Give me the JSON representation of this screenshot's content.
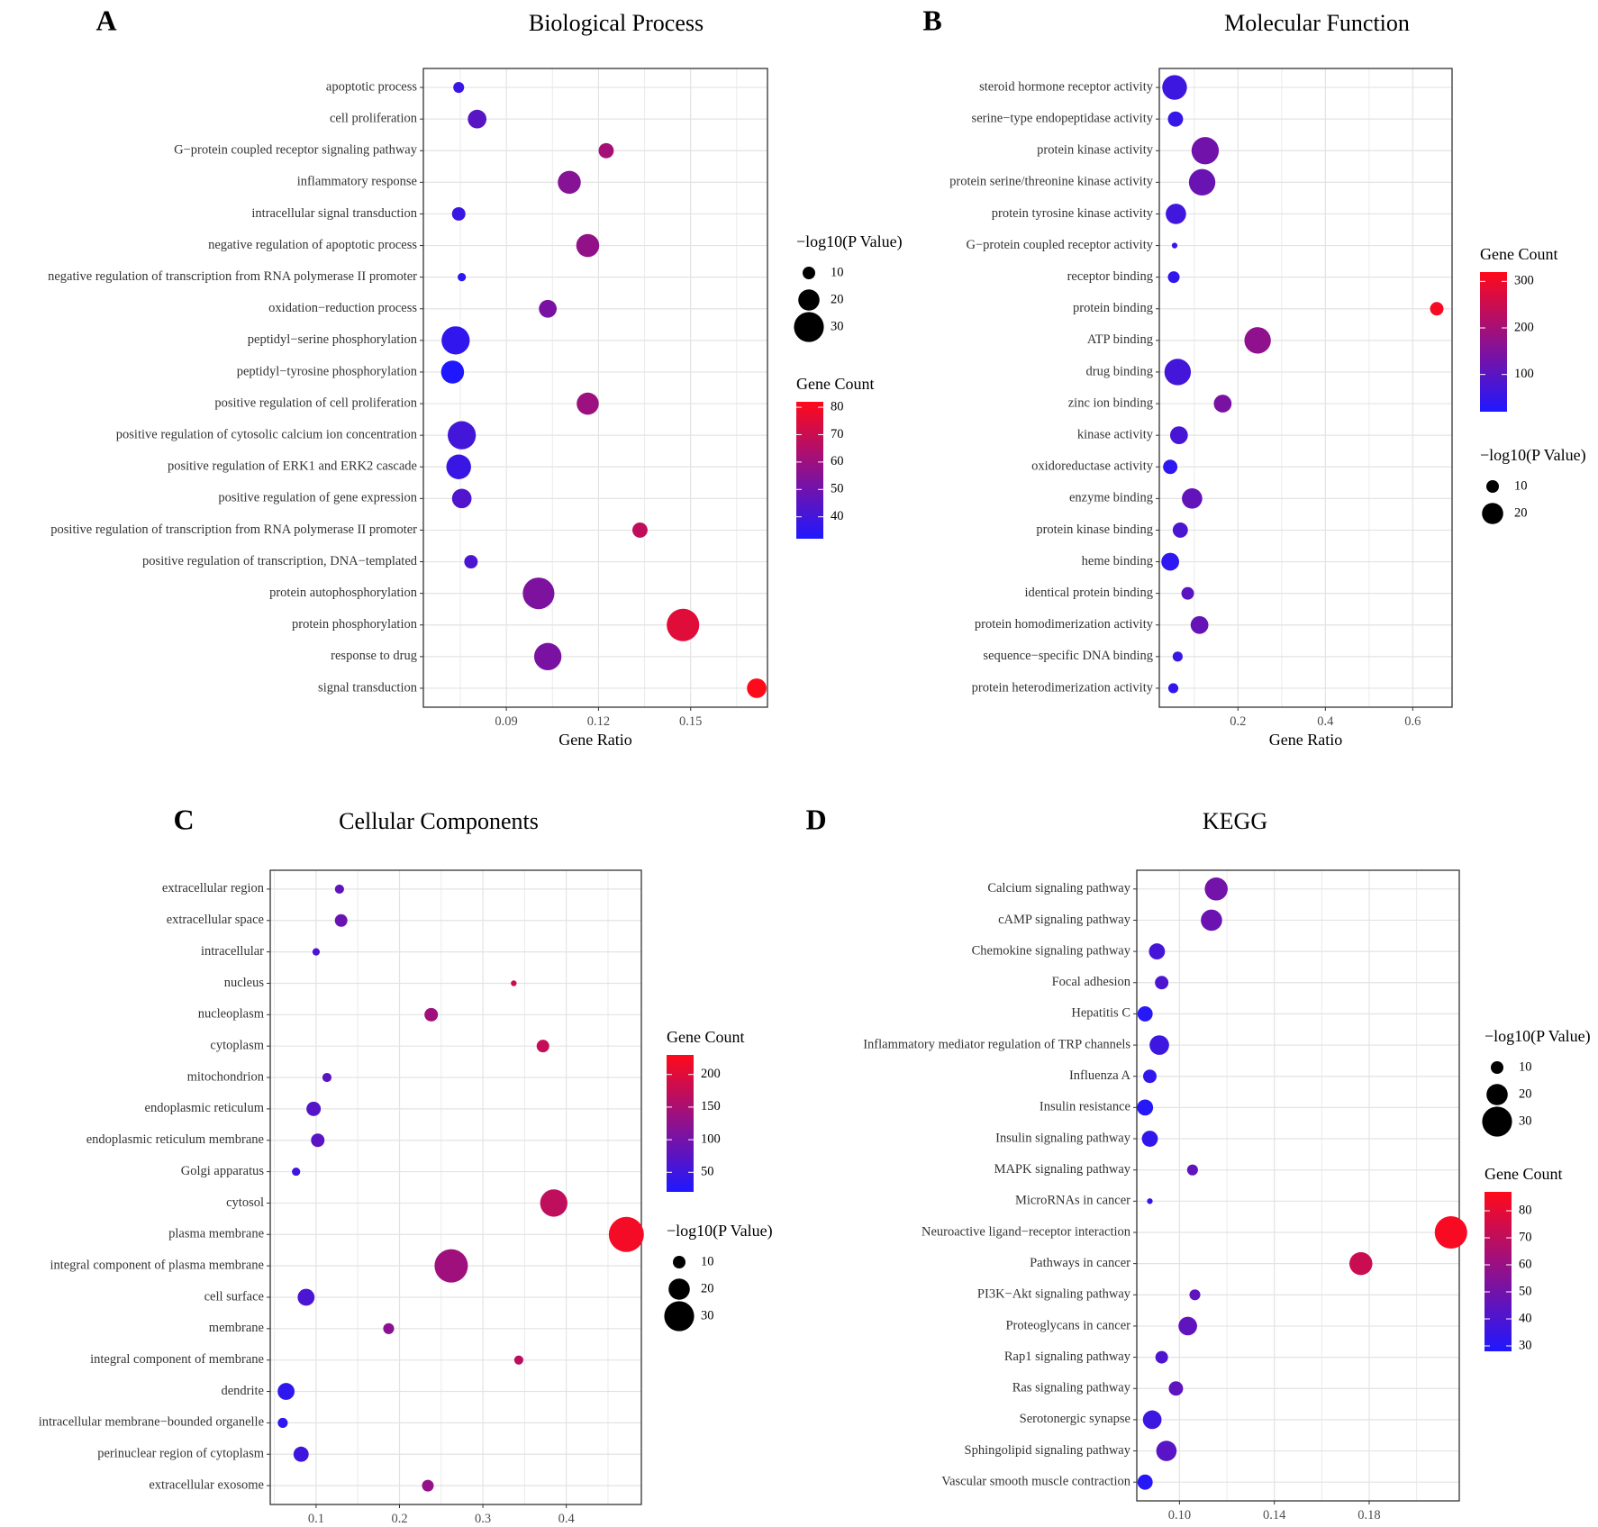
{
  "chart_data": [
    {
      "type": "scatter",
      "letter": "A",
      "title": "Biological Process",
      "xlabel": "Gene Ratio",
      "ylabel": "",
      "xlim": [
        0.063,
        0.175
      ],
      "xticks": [
        0.09,
        0.12,
        0.15
      ],
      "xtick_labels": [
        "0.09",
        "0.12",
        "0.15"
      ],
      "grid": true,
      "size_legend": {
        "title": "−log10(P Value)",
        "values": [
          10,
          20,
          30
        ],
        "labels": [
          "10",
          "20",
          "30"
        ]
      },
      "color_legend": {
        "title": "Gene Count",
        "range": [
          32,
          82
        ],
        "ticks": [
          40,
          50,
          60,
          70,
          80
        ],
        "tick_labels": [
          "40",
          "50",
          "60",
          "70",
          "80"
        ],
        "low_color": "#1f18ff",
        "high_color": "#ff0a1a"
      },
      "legend_order": [
        "size",
        "color"
      ],
      "categories": [
        "apoptotic process",
        "cell proliferation",
        "G−protein coupled receptor signaling pathway",
        "inflammatory response",
        "intracellular signal transduction",
        "negative regulation of apoptotic process",
        "negative regulation of transcription from RNA polymerase II promoter",
        "oxidation−reduction process",
        "peptidyl−serine phosphorylation",
        "peptidyl−tyrosine phosphorylation",
        "positive regulation of cell proliferation",
        "positive regulation of cytosolic calcium ion concentration",
        "positive regulation of ERK1 and ERK2 cascade",
        "positive regulation of gene expression",
        "positive regulation of transcription from RNA polymerase II promoter",
        "positive regulation of transcription, DNA−templated",
        "protein autophosphorylation",
        "protein phosphorylation",
        "response to drug",
        "signal transduction"
      ],
      "x": [
        0.0745,
        0.0805,
        0.1225,
        0.1105,
        0.0745,
        0.1165,
        0.0755,
        0.1035,
        0.0735,
        0.0725,
        0.1165,
        0.0755,
        0.0745,
        0.0755,
        0.1335,
        0.0785,
        0.1005,
        0.1475,
        0.1035,
        0.1715
      ],
      "neg_log10_p": [
        8,
        17,
        13,
        22,
        11,
        22,
        5,
        16,
        28,
        22,
        21,
        28,
        24,
        18,
        13,
        11,
        32,
        33,
        27,
        18
      ],
      "gene_count": [
        38,
        45,
        62,
        55,
        38,
        58,
        35,
        52,
        36,
        32,
        60,
        40,
        38,
        43,
        68,
        42,
        53,
        75,
        52,
        82
      ]
    },
    {
      "type": "scatter",
      "letter": "B",
      "title": "Molecular Function",
      "xlabel": "Gene Ratio",
      "ylabel": "",
      "xlim": [
        0.02,
        0.69
      ],
      "xticks": [
        0.2,
        0.4,
        0.6
      ],
      "xtick_labels": [
        "0.2",
        "0.4",
        "0.6"
      ],
      "grid": true,
      "size_legend": {
        "title": "−log10(P Value)",
        "values": [
          10,
          20
        ],
        "labels": [
          "10",
          "20"
        ]
      },
      "color_legend": {
        "title": "Gene Count",
        "range": [
          20,
          320
        ],
        "ticks": [
          100,
          200,
          300
        ],
        "tick_labels": [
          "100",
          "200",
          "300"
        ],
        "low_color": "#1f18ff",
        "high_color": "#ff0a1a"
      },
      "legend_order": [
        "color",
        "size"
      ],
      "categories": [
        "steroid hormone receptor activity",
        "serine−type endopeptidase activity",
        "protein kinase activity",
        "protein serine/threonine kinase activity",
        "protein tyrosine kinase activity",
        "G−protein coupled receptor activity",
        "receptor binding",
        "protein binding",
        "ATP binding",
        "drug binding",
        "zinc ion binding",
        "kinase activity",
        "oxidoreductase activity",
        "enzyme binding",
        "protein kinase binding",
        "heme binding",
        "identical protein binding",
        "protein homodimerization activity",
        "sequence−specific DNA binding",
        "protein heterodimerization activity"
      ],
      "x": [
        0.055,
        0.057,
        0.125,
        0.118,
        0.058,
        0.055,
        0.053,
        0.655,
        0.245,
        0.062,
        0.165,
        0.065,
        0.045,
        0.095,
        0.068,
        0.045,
        0.085,
        0.112,
        0.062,
        0.052
      ],
      "neg_log10_p": [
        24,
        13,
        27,
        26,
        19,
        2,
        9,
        11,
        26,
        26,
        16,
        16,
        12,
        19,
        13,
        16,
        10,
        16,
        7,
        7
      ],
      "gene_count": [
        60,
        50,
        130,
        120,
        65,
        50,
        45,
        310,
        170,
        70,
        140,
        75,
        40,
        110,
        80,
        40,
        100,
        115,
        55,
        45
      ]
    },
    {
      "type": "scatter",
      "letter": "C",
      "title": "Cellular Components",
      "xlabel": "Gene Ratio",
      "ylabel": "",
      "xlim": [
        0.045,
        0.49
      ],
      "xticks": [
        0.1,
        0.2,
        0.3,
        0.4
      ],
      "xtick_labels": [
        "0.1",
        "0.2",
        "0.3",
        "0.4"
      ],
      "grid": true,
      "size_legend": {
        "title": "−log10(P Value)",
        "values": [
          10,
          20,
          30
        ],
        "labels": [
          "10",
          "20",
          "30"
        ]
      },
      "color_legend": {
        "title": "Gene Count",
        "range": [
          20,
          230
        ],
        "ticks": [
          50,
          100,
          150,
          200
        ],
        "tick_labels": [
          "50",
          "100",
          "150",
          "200"
        ],
        "low_color": "#1f18ff",
        "high_color": "#ff0a1a"
      },
      "legend_order": [
        "color",
        "size"
      ],
      "categories": [
        "extracellular region",
        "extracellular space",
        "intracellular",
        "nucleus",
        "nucleoplasm",
        "cytoplasm",
        "mitochondrion",
        "endoplasmic reticulum",
        "endoplasmic reticulum membrane",
        "Golgi apparatus",
        "cytosol",
        "plasma membrane",
        "integral component of plasma membrane",
        "cell surface",
        "membrane",
        "integral component of membrane",
        "dendrite",
        "intracellular membrane−bounded organelle",
        "perinuclear region of cytoplasm",
        "extracellular exosome"
      ],
      "x": [
        0.128,
        0.13,
        0.1,
        0.337,
        0.238,
        0.372,
        0.113,
        0.097,
        0.102,
        0.076,
        0.385,
        0.472,
        0.262,
        0.088,
        0.187,
        0.343,
        0.064,
        0.06,
        0.082,
        0.234
      ],
      "neg_log10_p": [
        6,
        10,
        4,
        2,
        11,
        10,
        6,
        12,
        11,
        5,
        27,
        36,
        34,
        15,
        8,
        6,
        15,
        7,
        13,
        9
      ],
      "gene_count": [
        80,
        90,
        60,
        180,
        140,
        175,
        75,
        70,
        75,
        50,
        170,
        220,
        140,
        60,
        120,
        165,
        35,
        35,
        50,
        130
      ]
    },
    {
      "type": "scatter",
      "letter": "D",
      "title": "KEGG",
      "xlabel": "Gene Ratio",
      "ylabel": "",
      "xlim": [
        0.082,
        0.218
      ],
      "xticks": [
        0.1,
        0.14,
        0.18
      ],
      "xtick_labels": [
        "0.10",
        "0.14",
        "0.18"
      ],
      "grid": true,
      "size_legend": {
        "title": "−log10(P Value)",
        "values": [
          10,
          20,
          30
        ],
        "labels": [
          "10",
          "20",
          "30"
        ]
      },
      "color_legend": {
        "title": "Gene Count",
        "range": [
          28,
          87
        ],
        "ticks": [
          30,
          40,
          50,
          60,
          70,
          80
        ],
        "tick_labels": [
          "30",
          "40",
          "50",
          "60",
          "70",
          "80"
        ],
        "low_color": "#1f18ff",
        "high_color": "#ff0a1a"
      },
      "legend_order": [
        "size",
        "color"
      ],
      "categories": [
        "Calcium signaling pathway",
        "cAMP signaling pathway",
        "Chemokine signaling pathway",
        "Focal adhesion",
        "Hepatitis C",
        "Inflammatory mediator regulation of TRP channels",
        "Influenza A",
        "Insulin resistance",
        "Insulin signaling pathway",
        "MAPK signaling pathway",
        "MicroRNAs in cancer",
        "Neuroactive ligand−receptor interaction",
        "Pathways in cancer",
        "PI3K−Akt signaling pathway",
        "Proteoglycans in cancer",
        "Rap1 signaling pathway",
        "Ras signaling pathway",
        "Serotonergic synapse",
        "Sphingolipid signaling pathway",
        "Vascular smooth muscle contraction"
      ],
      "x": [
        0.1155,
        0.1135,
        0.0905,
        0.0925,
        0.0855,
        0.0915,
        0.0875,
        0.0855,
        0.0875,
        0.1055,
        0.0875,
        0.2145,
        0.1765,
        0.1065,
        0.1035,
        0.0925,
        0.0985,
        0.0885,
        0.0945,
        0.0855
      ],
      "neg_log10_p": [
        22,
        20,
        14,
        11,
        13,
        18,
        11,
        14,
        14,
        8,
        2,
        33,
        22,
        8,
        17,
        10,
        12,
        17,
        19,
        13
      ],
      "gene_count": [
        50,
        48,
        38,
        40,
        30,
        36,
        33,
        30,
        33,
        45,
        33,
        85,
        73,
        45,
        45,
        40,
        45,
        36,
        43,
        30
      ]
    }
  ]
}
